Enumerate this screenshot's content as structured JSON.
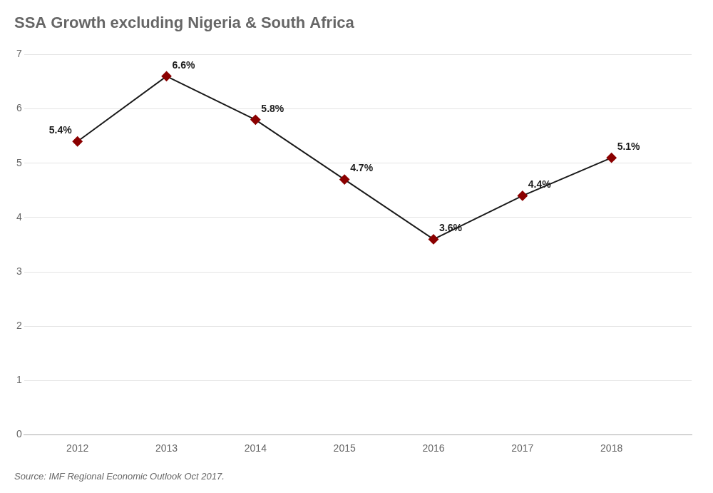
{
  "chart_data": {
    "type": "line",
    "title": "SSA Growth excluding Nigeria & South Africa",
    "annotation": "Source: IMF Regional Economic Outlook Oct 2017.",
    "x": [
      2012,
      2013,
      2014,
      2015,
      2016,
      2017,
      2018
    ],
    "values": [
      5.4,
      6.6,
      5.8,
      4.7,
      3.6,
      4.4,
      5.1
    ],
    "value_labels": [
      "5.4%",
      "6.6%",
      "5.8%",
      "4.7%",
      "3.6%",
      "4.4%",
      "5.1%"
    ],
    "data_labels": true,
    "color": "#1a1a1a",
    "colors": [
      "#8b0000",
      "#8b0000",
      "#8b0000",
      "#8b0000",
      "#8b0000",
      "#8b0000",
      "#8b0000"
    ],
    "marker": "diamond",
    "xlim": [
      2011.4,
      2018.9
    ],
    "xticks": [
      2012,
      2013,
      2014,
      2015,
      2016,
      2017,
      2018
    ],
    "ylim": [
      0,
      7
    ],
    "yticks": [
      0,
      1,
      2,
      3,
      4,
      5,
      6,
      7
    ],
    "grid": true
  }
}
